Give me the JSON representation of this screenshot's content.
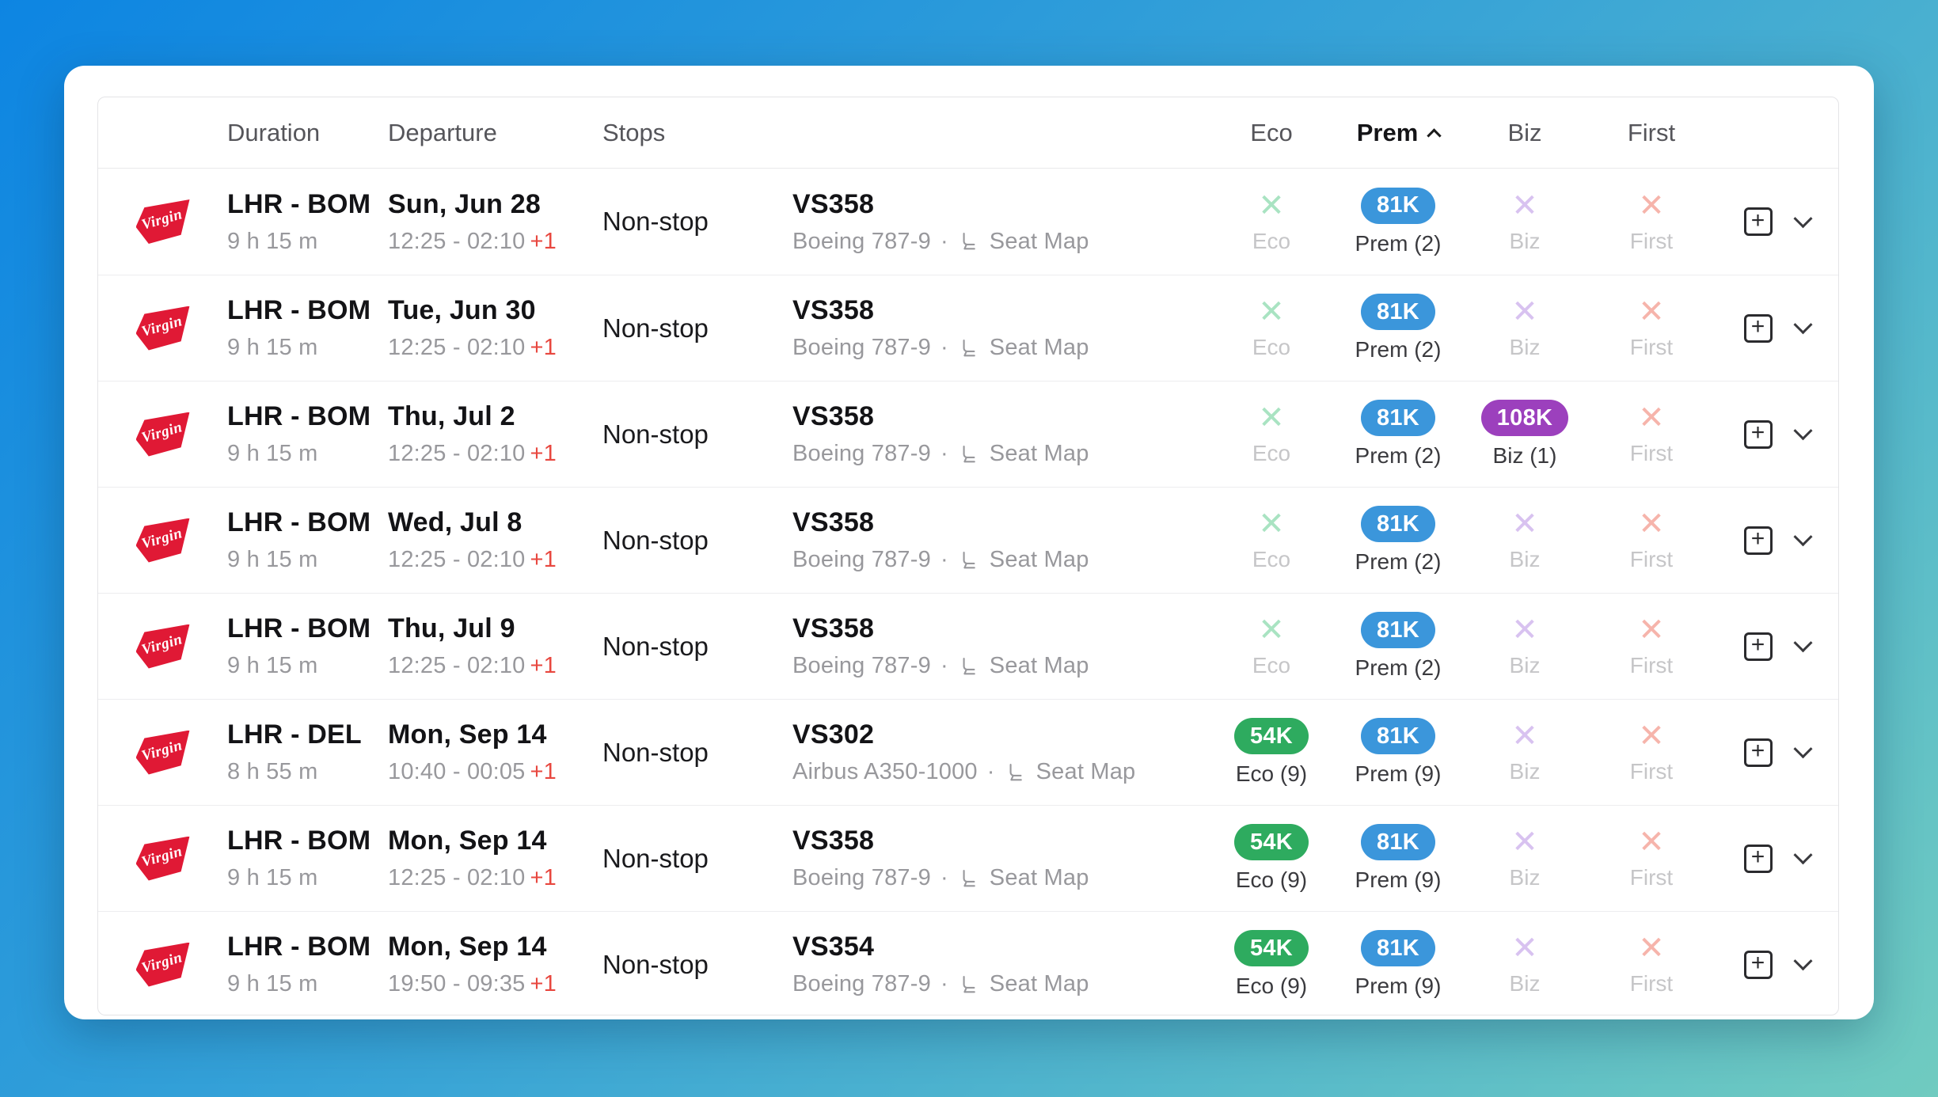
{
  "ui": {
    "dot": "·",
    "seat_map_label": "Seat Map",
    "plus_glyph": "+",
    "x_glyph": "✕"
  },
  "header": {
    "duration": "Duration",
    "departure": "Departure",
    "stops": "Stops",
    "eco": "Eco",
    "prem": "Prem",
    "biz": "Biz",
    "first": "First",
    "sorted_by": "Prem",
    "sort_direction": "ascending"
  },
  "airline": {
    "name": "Virgin Atlantic",
    "logo_text": "Virgin"
  },
  "colors": {
    "pill_green": "#2eab5f",
    "pill_blue": "#3b96db",
    "pill_purple": "#9c40bd",
    "x_green": "#a9e3c2",
    "x_purple": "#d8c2f0",
    "x_red": "#f6b4ab",
    "next_day_red": "#e8473f",
    "background_top_left": "#0d85e2",
    "background_bottom_right": "#70cbc0"
  },
  "rows": [
    {
      "route": "LHR - BOM",
      "duration": "9 h 15 m",
      "date": "Sun, Jun 28",
      "times": "12:25 - 02:10",
      "plus_days": "+1",
      "stops": "Non-stop",
      "flight": "VS358",
      "aircraft": "Boeing 787-9",
      "eco": {
        "type": "x",
        "color": "x_green",
        "label": "Eco"
      },
      "prem": {
        "type": "pill",
        "value": "81K",
        "color": "pill_blue",
        "label": "Prem (2)"
      },
      "biz": {
        "type": "x",
        "color": "x_purple",
        "label": "Biz"
      },
      "first": {
        "type": "x",
        "color": "x_red",
        "label": "First"
      }
    },
    {
      "route": "LHR - BOM",
      "duration": "9 h 15 m",
      "date": "Tue, Jun 30",
      "times": "12:25 - 02:10",
      "plus_days": "+1",
      "stops": "Non-stop",
      "flight": "VS358",
      "aircraft": "Boeing 787-9",
      "eco": {
        "type": "x",
        "color": "x_green",
        "label": "Eco"
      },
      "prem": {
        "type": "pill",
        "value": "81K",
        "color": "pill_blue",
        "label": "Prem (2)"
      },
      "biz": {
        "type": "x",
        "color": "x_purple",
        "label": "Biz"
      },
      "first": {
        "type": "x",
        "color": "x_red",
        "label": "First"
      }
    },
    {
      "route": "LHR - BOM",
      "duration": "9 h 15 m",
      "date": "Thu, Jul 2",
      "times": "12:25 - 02:10",
      "plus_days": "+1",
      "stops": "Non-stop",
      "flight": "VS358",
      "aircraft": "Boeing 787-9",
      "eco": {
        "type": "x",
        "color": "x_green",
        "label": "Eco"
      },
      "prem": {
        "type": "pill",
        "value": "81K",
        "color": "pill_blue",
        "label": "Prem (2)"
      },
      "biz": {
        "type": "pill",
        "value": "108K",
        "color": "pill_purple",
        "label": "Biz (1)"
      },
      "first": {
        "type": "x",
        "color": "x_red",
        "label": "First"
      }
    },
    {
      "route": "LHR - BOM",
      "duration": "9 h 15 m",
      "date": "Wed, Jul 8",
      "times": "12:25 - 02:10",
      "plus_days": "+1",
      "stops": "Non-stop",
      "flight": "VS358",
      "aircraft": "Boeing 787-9",
      "eco": {
        "type": "x",
        "color": "x_green",
        "label": "Eco"
      },
      "prem": {
        "type": "pill",
        "value": "81K",
        "color": "pill_blue",
        "label": "Prem (2)"
      },
      "biz": {
        "type": "x",
        "color": "x_purple",
        "label": "Biz"
      },
      "first": {
        "type": "x",
        "color": "x_red",
        "label": "First"
      }
    },
    {
      "route": "LHR - BOM",
      "duration": "9 h 15 m",
      "date": "Thu, Jul 9",
      "times": "12:25 - 02:10",
      "plus_days": "+1",
      "stops": "Non-stop",
      "flight": "VS358",
      "aircraft": "Boeing 787-9",
      "eco": {
        "type": "x",
        "color": "x_green",
        "label": "Eco"
      },
      "prem": {
        "type": "pill",
        "value": "81K",
        "color": "pill_blue",
        "label": "Prem (2)"
      },
      "biz": {
        "type": "x",
        "color": "x_purple",
        "label": "Biz"
      },
      "first": {
        "type": "x",
        "color": "x_red",
        "label": "First"
      }
    },
    {
      "route": "LHR - DEL",
      "duration": "8 h 55 m",
      "date": "Mon, Sep 14",
      "times": "10:40 - 00:05",
      "plus_days": "+1",
      "stops": "Non-stop",
      "flight": "VS302",
      "aircraft": "Airbus A350-1000",
      "eco": {
        "type": "pill",
        "value": "54K",
        "color": "pill_green",
        "label": "Eco (9)"
      },
      "prem": {
        "type": "pill",
        "value": "81K",
        "color": "pill_blue",
        "label": "Prem (9)"
      },
      "biz": {
        "type": "x",
        "color": "x_purple",
        "label": "Biz"
      },
      "first": {
        "type": "x",
        "color": "x_red",
        "label": "First"
      }
    },
    {
      "route": "LHR - BOM",
      "duration": "9 h 15 m",
      "date": "Mon, Sep 14",
      "times": "12:25 - 02:10",
      "plus_days": "+1",
      "stops": "Non-stop",
      "flight": "VS358",
      "aircraft": "Boeing 787-9",
      "eco": {
        "type": "pill",
        "value": "54K",
        "color": "pill_green",
        "label": "Eco (9)"
      },
      "prem": {
        "type": "pill",
        "value": "81K",
        "color": "pill_blue",
        "label": "Prem (9)"
      },
      "biz": {
        "type": "x",
        "color": "x_purple",
        "label": "Biz"
      },
      "first": {
        "type": "x",
        "color": "x_red",
        "label": "First"
      }
    },
    {
      "route": "LHR - BOM",
      "duration": "9 h 15 m",
      "date": "Mon, Sep 14",
      "times": "19:50 - 09:35",
      "plus_days": "+1",
      "stops": "Non-stop",
      "flight": "VS354",
      "aircraft": "Boeing 787-9",
      "eco": {
        "type": "pill",
        "value": "54K",
        "color": "pill_green",
        "label": "Eco (9)"
      },
      "prem": {
        "type": "pill",
        "value": "81K",
        "color": "pill_blue",
        "label": "Prem (9)"
      },
      "biz": {
        "type": "x",
        "color": "x_purple",
        "label": "Biz"
      },
      "first": {
        "type": "x",
        "color": "x_red",
        "label": "First"
      }
    }
  ]
}
